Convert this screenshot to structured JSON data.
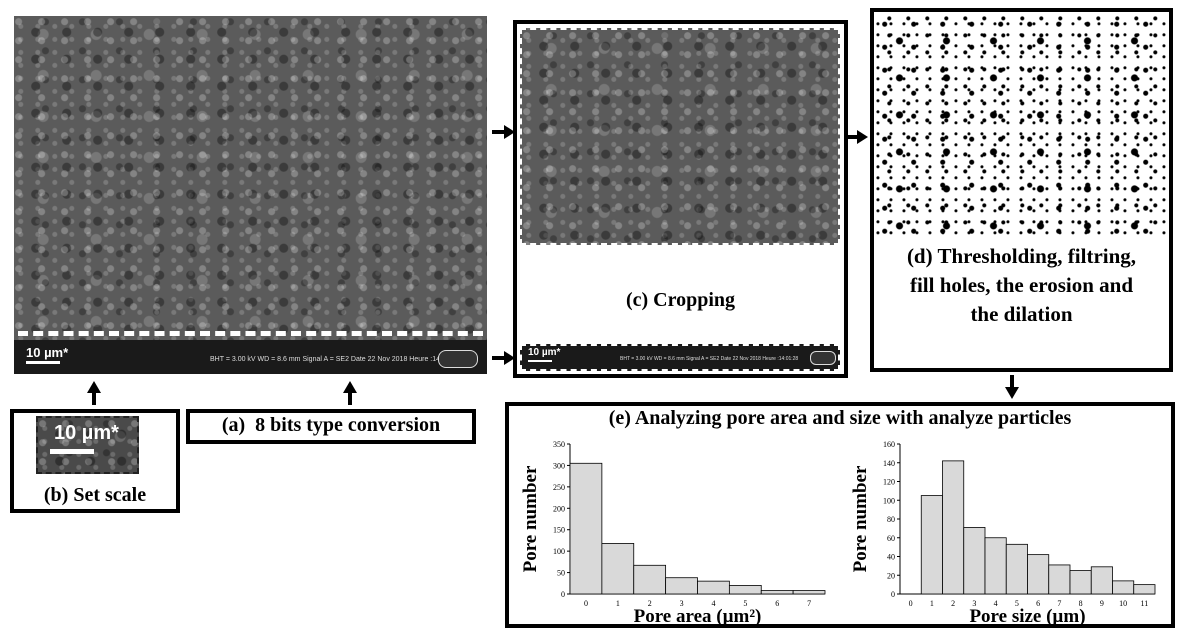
{
  "panel_a": {
    "label": "(a)  8 bits type conversion",
    "scale_label": "10 µm*",
    "info_bar": "BHT = 3.00 kV    WD = 8.6 mm  Signal A = SE2 Date 22 Nov 2018  Heure :14:01:28"
  },
  "panel_b": {
    "label": "(b) Set scale",
    "scale_label": "10 µm*"
  },
  "panel_c": {
    "label": "(c) Cropping",
    "scale_label": "10 µm*",
    "info_bar": "BHT = 3.00 kV   WD = 8.6 mm  Signal A = SE2 Date 22 Nov 2018  Heure :14:01:28"
  },
  "panel_d": {
    "label_line1": "(d) Thresholding, filtring,",
    "label_line2": "fill holes, the erosion and",
    "label_line3": "the dilation"
  },
  "panel_e": {
    "title": "(e) Analyzing pore area and size with analyze particles"
  },
  "chart_data": [
    {
      "type": "bar",
      "categories": [
        "0",
        "1",
        "2",
        "3",
        "4",
        "5",
        "6",
        "7"
      ],
      "values": [
        305,
        118,
        67,
        38,
        30,
        20,
        8,
        8
      ],
      "xlabel": "Pore area (µm²)",
      "ylabel": "Pore number",
      "ylim": [
        0,
        350
      ],
      "yticks": [
        "0",
        "50",
        "100",
        "150",
        "200",
        "250",
        "300",
        "350"
      ],
      "grid": false
    },
    {
      "type": "bar",
      "categories": [
        "0",
        "1",
        "2",
        "3",
        "4",
        "5",
        "6",
        "7",
        "8",
        "9",
        "10",
        "11"
      ],
      "values": [
        0,
        105,
        142,
        71,
        60,
        53,
        42,
        31,
        25,
        29,
        14,
        10
      ],
      "xlabel": "Pore size (µm)",
      "ylabel": "Pore number",
      "ylim": [
        0,
        160
      ],
      "yticks": [
        "0",
        "20",
        "40",
        "60",
        "80",
        "100",
        "120",
        "140",
        "160"
      ],
      "grid": false
    }
  ]
}
